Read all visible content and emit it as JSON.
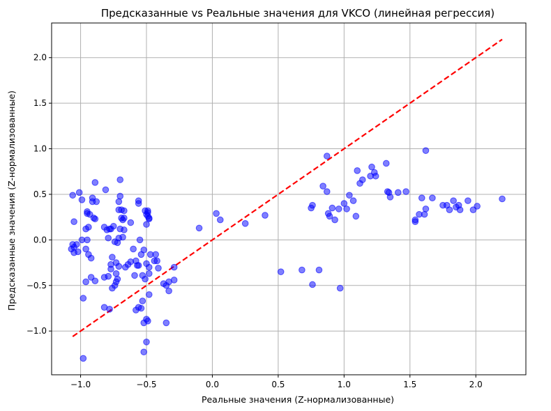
{
  "chart_data": {
    "type": "scatter",
    "title": "Предсказанные vs Реальные значения для VKCO (линейная регрессия)",
    "xlabel": "Реальные значения (Z-нормализованные)",
    "ylabel": "Предсказанные значения (Z-нормализованные)",
    "xlim": [
      -1.22,
      2.38
    ],
    "ylim": [
      -1.48,
      2.38
    ],
    "xticks": [
      -1.0,
      -0.5,
      0.0,
      0.5,
      1.0,
      1.5,
      2.0
    ],
    "xtick_labels": [
      "−1.0",
      "−0.5",
      "0.0",
      "0.5",
      "1.0",
      "1.5",
      "2.0"
    ],
    "yticks": [
      -1.0,
      -0.5,
      0.0,
      0.5,
      1.0,
      1.5,
      2.0
    ],
    "ytick_labels": [
      "−1.0",
      "−0.5",
      "0.0",
      "0.5",
      "1.0",
      "1.5",
      "2.0"
    ],
    "grid": true,
    "colors": {
      "points": "#0000ff",
      "ideal_line": "#ff0000",
      "grid": "#b0b0b0"
    },
    "reference_line": {
      "x": [
        -1.06,
        2.2
      ],
      "y": [
        -1.06,
        2.2
      ],
      "style": "dashed"
    },
    "points": [
      [
        -1.06,
        0.49
      ],
      [
        -1.01,
        0.52
      ],
      [
        -0.99,
        0.44
      ],
      [
        -1.05,
        0.2
      ],
      [
        -1.06,
        -0.05
      ],
      [
        -1.05,
        -0.08
      ],
      [
        -1.07,
        -0.1
      ],
      [
        -1.05,
        -0.14
      ],
      [
        -1.02,
        -0.13
      ],
      [
        -1.03,
        -0.05
      ],
      [
        -0.99,
        0.0
      ],
      [
        -0.95,
        0.0
      ],
      [
        -0.96,
        -0.1
      ],
      [
        -0.94,
        -0.16
      ],
      [
        -0.92,
        -0.2
      ],
      [
        -0.98,
        -0.64
      ],
      [
        -0.98,
        -1.3
      ],
      [
        -0.96,
        -0.46
      ],
      [
        -0.92,
        -0.41
      ],
      [
        -0.89,
        -0.45
      ],
      [
        -0.95,
        0.29
      ],
      [
        -0.95,
        0.31
      ],
      [
        -0.93,
        0.28
      ],
      [
        -0.91,
        0.42
      ],
      [
        -0.91,
        0.46
      ],
      [
        -0.89,
        0.63
      ],
      [
        -0.88,
        0.42
      ],
      [
        -0.9,
        0.24
      ],
      [
        -0.89,
        0.23
      ],
      [
        -0.94,
        0.14
      ],
      [
        -0.96,
        0.12
      ],
      [
        -0.81,
        0.55
      ],
      [
        -0.8,
        0.11
      ],
      [
        -0.82,
        0.14
      ],
      [
        -0.78,
        0.12
      ],
      [
        -0.79,
        0.02
      ],
      [
        -0.77,
        0.12
      ],
      [
        -0.75,
        0.15
      ],
      [
        -0.76,
        -0.19
      ],
      [
        -0.77,
        -0.27
      ],
      [
        -0.77,
        -0.32
      ],
      [
        -0.79,
        -0.4
      ],
      [
        -0.82,
        -0.41
      ],
      [
        -0.76,
        -0.53
      ],
      [
        -0.74,
        -0.5
      ],
      [
        -0.82,
        -0.74
      ],
      [
        -0.78,
        -0.76
      ],
      [
        -0.73,
        -0.46
      ],
      [
        -0.72,
        -0.43
      ],
      [
        -0.73,
        -0.37
      ],
      [
        -0.73,
        -0.25
      ],
      [
        -0.71,
        -0.29
      ],
      [
        -0.72,
        -0.03
      ],
      [
        -0.74,
        -0.02
      ],
      [
        -0.71,
        0.02
      ],
      [
        -0.71,
        0.33
      ],
      [
        -0.69,
        0.33
      ],
      [
        -0.71,
        0.42
      ],
      [
        -0.7,
        0.48
      ],
      [
        -0.7,
        0.66
      ],
      [
        -0.69,
        0.24
      ],
      [
        -0.68,
        0.22
      ],
      [
        -0.67,
        0.24
      ],
      [
        -0.7,
        0.12
      ],
      [
        -0.67,
        0.11
      ],
      [
        -0.67,
        0.32
      ],
      [
        -0.68,
        0.03
      ],
      [
        -0.66,
        -0.3
      ],
      [
        -0.64,
        -0.27
      ],
      [
        -0.62,
        -0.24
      ],
      [
        -0.62,
        0.19
      ],
      [
        -0.6,
        -0.1
      ],
      [
        -0.58,
        -0.23
      ],
      [
        -0.57,
        -0.28
      ],
      [
        -0.56,
        -0.28
      ],
      [
        -0.55,
        0.0
      ],
      [
        -0.56,
        0.4
      ],
      [
        -0.56,
        0.43
      ],
      [
        -0.54,
        -0.16
      ],
      [
        -0.52,
        -0.11
      ],
      [
        -0.5,
        0.17
      ],
      [
        -0.51,
        0.32
      ],
      [
        -0.49,
        0.3
      ],
      [
        -0.5,
        0.28
      ],
      [
        -0.49,
        0.26
      ],
      [
        -0.48,
        0.24
      ],
      [
        -0.48,
        0.23
      ],
      [
        -0.49,
        0.32
      ],
      [
        -0.5,
        -0.26
      ],
      [
        -0.48,
        -0.3
      ],
      [
        -0.47,
        -0.16
      ],
      [
        -0.44,
        -0.23
      ],
      [
        -0.43,
        -0.16
      ],
      [
        -0.42,
        -0.23
      ],
      [
        -0.41,
        -0.31
      ],
      [
        -0.59,
        -0.39
      ],
      [
        -0.53,
        -0.39
      ],
      [
        -0.51,
        -0.43
      ],
      [
        -0.48,
        -0.37
      ],
      [
        -0.48,
        -0.6
      ],
      [
        -0.5,
        -0.87
      ],
      [
        -0.49,
        -0.89
      ],
      [
        -0.52,
        -0.91
      ],
      [
        -0.5,
        -1.12
      ],
      [
        -0.52,
        -1.23
      ],
      [
        -0.56,
        -0.74
      ],
      [
        -0.54,
        -0.75
      ],
      [
        -0.58,
        -0.77
      ],
      [
        -0.53,
        -0.67
      ],
      [
        -0.35,
        -0.91
      ],
      [
        -0.37,
        -0.48
      ],
      [
        -0.35,
        -0.5
      ],
      [
        -0.33,
        -0.46
      ],
      [
        -0.33,
        -0.56
      ],
      [
        -0.29,
        -0.3
      ],
      [
        -0.29,
        -0.44
      ],
      [
        -0.1,
        0.13
      ],
      [
        0.03,
        0.29
      ],
      [
        0.06,
        0.22
      ],
      [
        0.25,
        0.18
      ],
      [
        0.4,
        0.27
      ],
      [
        0.52,
        -0.35
      ],
      [
        0.68,
        -0.33
      ],
      [
        0.75,
        0.35
      ],
      [
        0.76,
        0.38
      ],
      [
        0.76,
        -0.49
      ],
      [
        0.81,
        -0.33
      ],
      [
        0.84,
        0.59
      ],
      [
        0.87,
        0.53
      ],
      [
        0.87,
        0.92
      ],
      [
        0.88,
        0.29
      ],
      [
        0.89,
        0.26
      ],
      [
        0.91,
        0.35
      ],
      [
        0.93,
        0.22
      ],
      [
        0.96,
        0.34
      ],
      [
        0.97,
        -0.53
      ],
      [
        1.0,
        0.4
      ],
      [
        1.02,
        0.34
      ],
      [
        1.04,
        0.49
      ],
      [
        1.07,
        0.43
      ],
      [
        1.09,
        0.26
      ],
      [
        1.1,
        0.76
      ],
      [
        1.12,
        0.62
      ],
      [
        1.14,
        0.66
      ],
      [
        1.2,
        0.7
      ],
      [
        1.21,
        0.8
      ],
      [
        1.23,
        0.74
      ],
      [
        1.24,
        0.7
      ],
      [
        1.32,
        0.84
      ],
      [
        1.33,
        0.53
      ],
      [
        1.35,
        0.47
      ],
      [
        1.34,
        0.52
      ],
      [
        1.41,
        0.52
      ],
      [
        1.47,
        0.53
      ],
      [
        1.54,
        0.2
      ],
      [
        1.54,
        0.22
      ],
      [
        1.57,
        0.28
      ],
      [
        1.59,
        0.46
      ],
      [
        1.61,
        0.28
      ],
      [
        1.62,
        0.34
      ],
      [
        1.62,
        0.98
      ],
      [
        1.67,
        0.46
      ],
      [
        1.75,
        0.38
      ],
      [
        1.78,
        0.38
      ],
      [
        1.8,
        0.33
      ],
      [
        1.83,
        0.43
      ],
      [
        1.85,
        0.36
      ],
      [
        1.87,
        0.38
      ],
      [
        1.88,
        0.33
      ],
      [
        1.94,
        0.43
      ],
      [
        1.98,
        0.33
      ],
      [
        2.01,
        0.37
      ],
      [
        2.2,
        0.45
      ]
    ]
  }
}
